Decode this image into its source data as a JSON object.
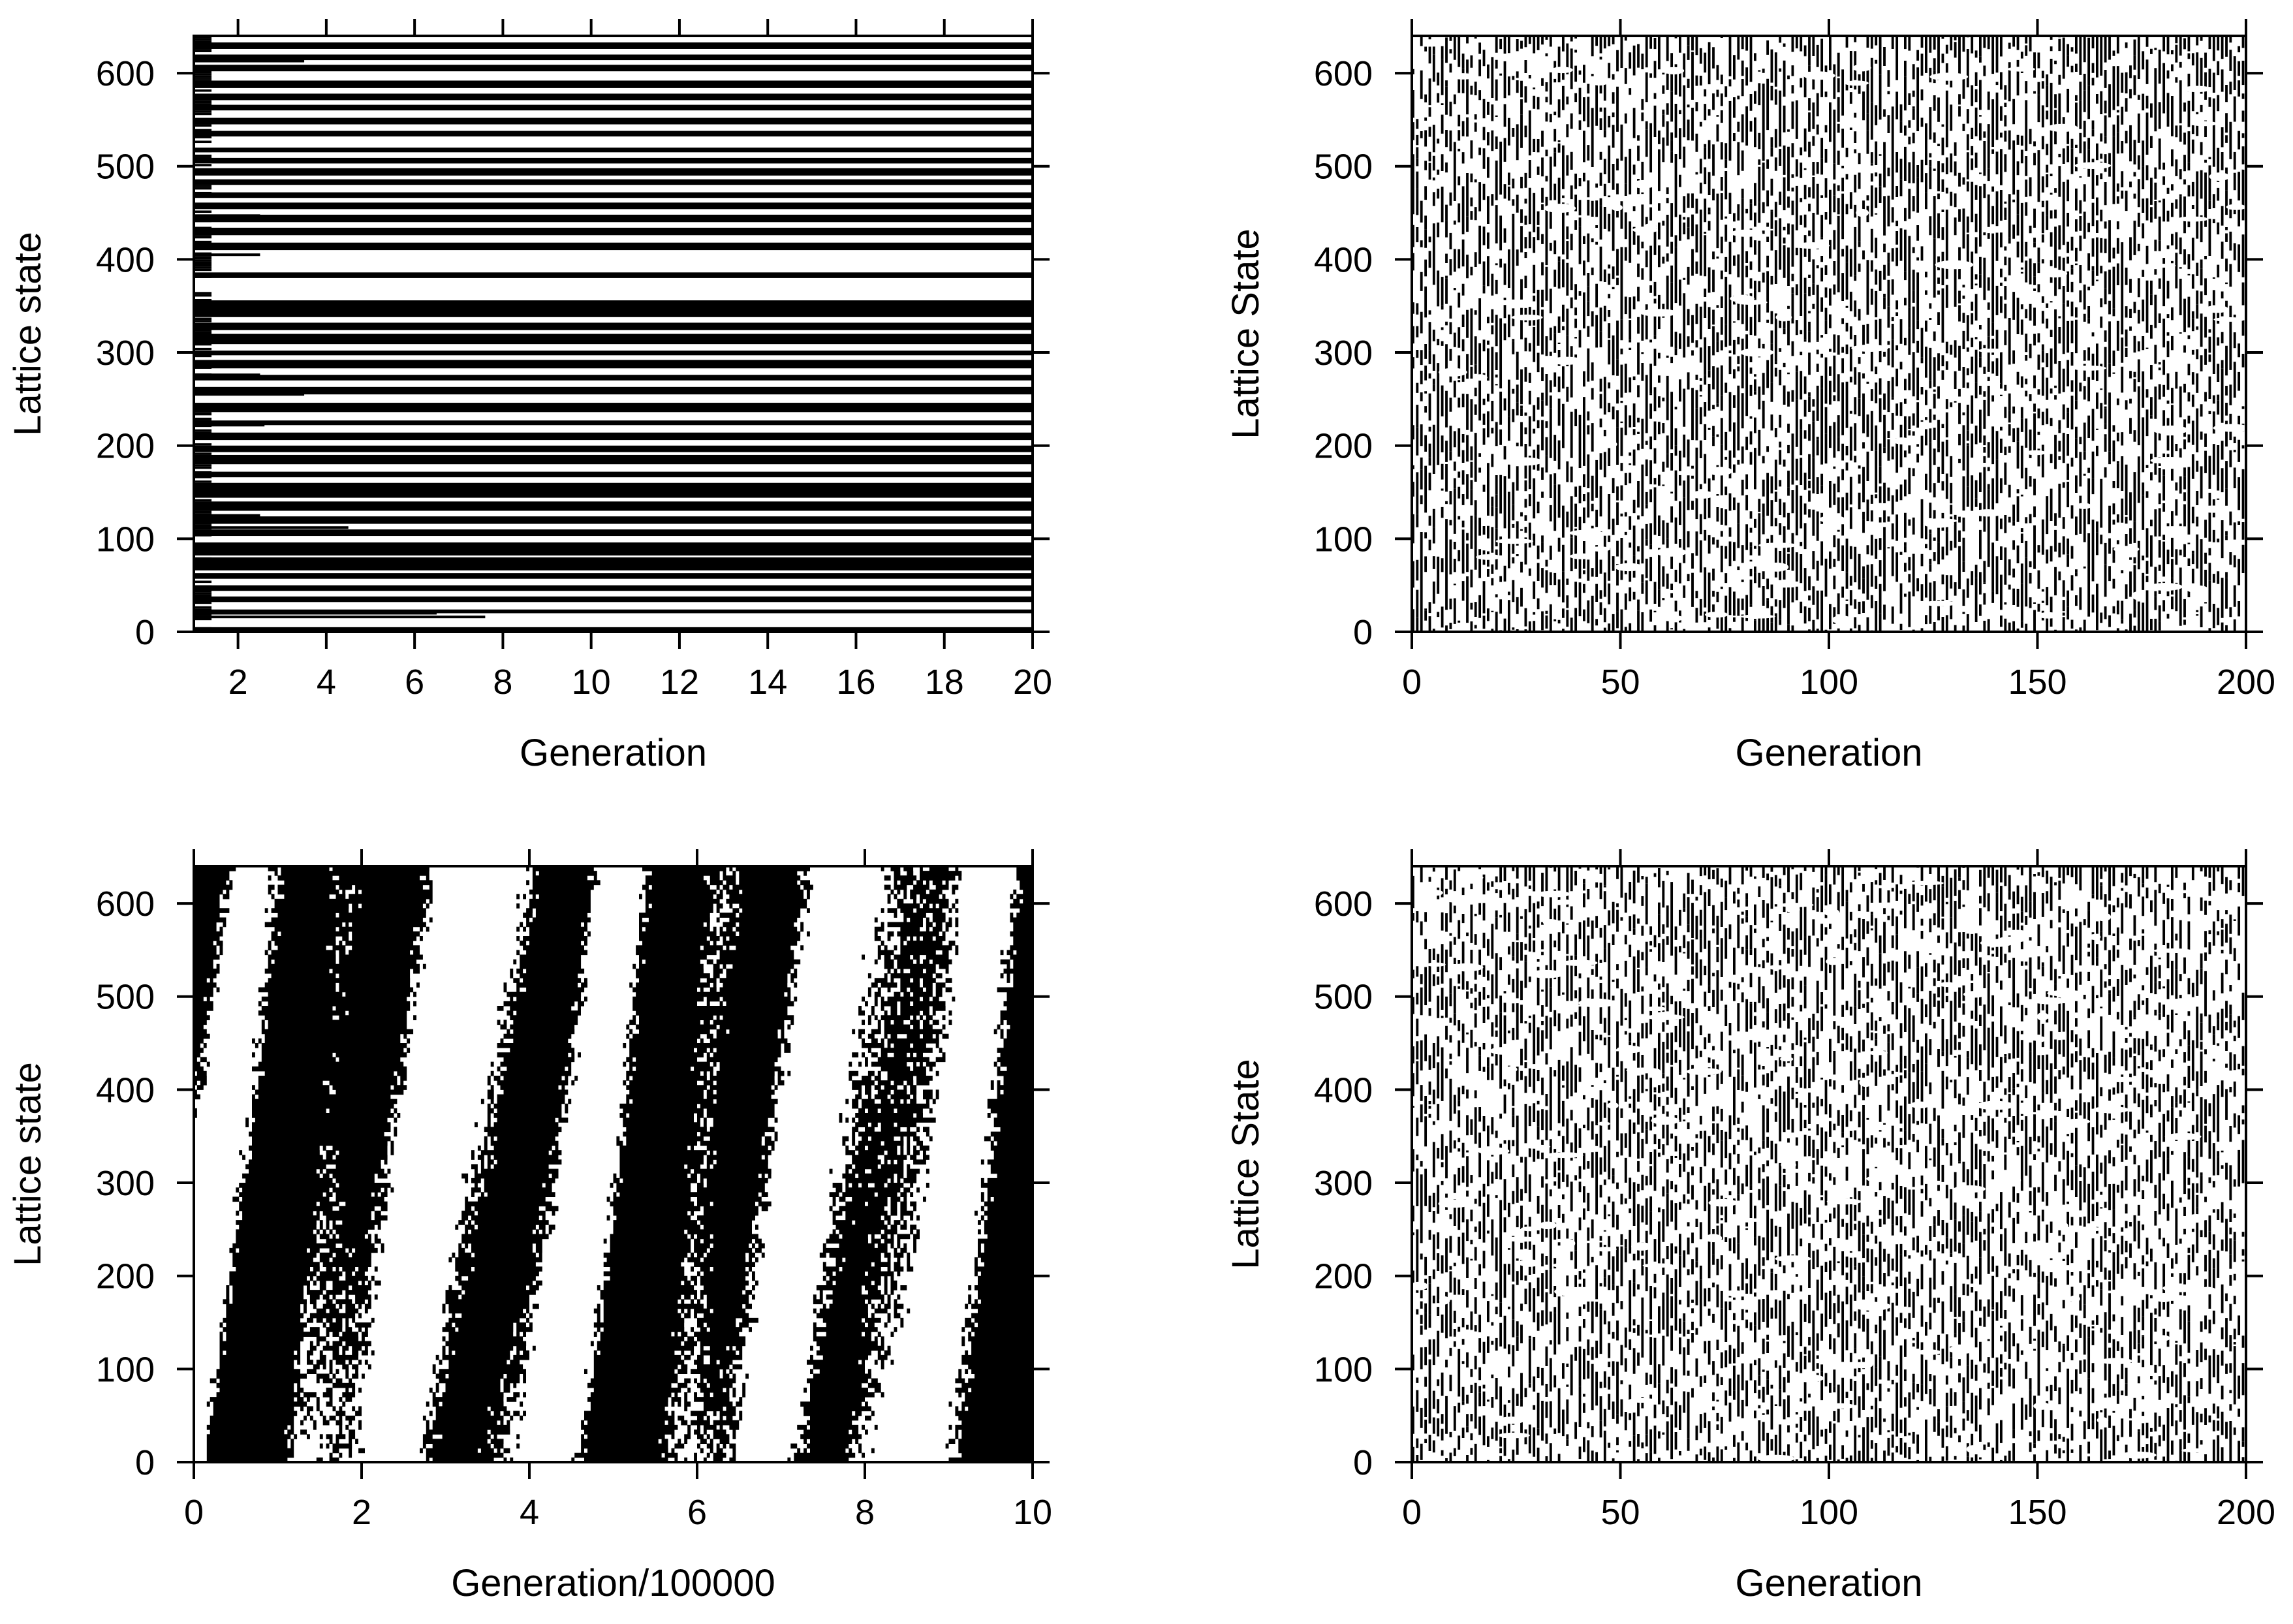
{
  "figure": {
    "colors": {
      "foreground": "#000000",
      "background": "#ffffff"
    }
  },
  "chart_data": [
    {
      "id": "panel-a",
      "type": "heatmap",
      "pattern": "horizontal-stripes",
      "xlabel": "Generation",
      "ylabel": "Lattice state",
      "xlim": [
        1,
        20
      ],
      "ylim": [
        0,
        640
      ],
      "x_ticks": [
        2,
        4,
        6,
        8,
        10,
        12,
        14,
        16,
        18,
        20
      ],
      "x_tick_labels": [
        "2",
        "4",
        "6",
        "8",
        "10",
        "12",
        "14",
        "16",
        "18",
        "20"
      ],
      "y_ticks": [
        0,
        100,
        200,
        300,
        400,
        500,
        600
      ],
      "y_tick_labels": [
        "0",
        "100",
        "200",
        "300",
        "400",
        "500",
        "600"
      ],
      "bands": [
        [
          0,
          5
        ],
        [
          20,
          24
        ],
        [
          32,
          38
        ],
        [
          44,
          50
        ],
        [
          57,
          63
        ],
        [
          66,
          80
        ],
        [
          82,
          96
        ],
        [
          103,
          110
        ],
        [
          116,
          124
        ],
        [
          130,
          140
        ],
        [
          144,
          160
        ],
        [
          166,
          172
        ],
        [
          180,
          190
        ],
        [
          193,
          200
        ],
        [
          206,
          214
        ],
        [
          222,
          227
        ],
        [
          236,
          246
        ],
        [
          255,
          263
        ],
        [
          270,
          276
        ],
        [
          283,
          292
        ],
        [
          297,
          302
        ],
        [
          309,
          320
        ],
        [
          324,
          332
        ],
        [
          338,
          356
        ],
        [
          380,
          386
        ],
        [
          410,
          418
        ],
        [
          426,
          434
        ],
        [
          440,
          448
        ],
        [
          454,
          461
        ],
        [
          466,
          472
        ],
        [
          480,
          486
        ],
        [
          490,
          498
        ],
        [
          503,
          509
        ],
        [
          515,
          520
        ],
        [
          532,
          538
        ],
        [
          545,
          552
        ],
        [
          560,
          566
        ],
        [
          571,
          578
        ],
        [
          584,
          592
        ],
        [
          602,
          609
        ],
        [
          614,
          620
        ],
        [
          626,
          633
        ]
      ],
      "transient_lines": [
        {
          "y": 20,
          "x_end": 6.5
        },
        {
          "y": 16,
          "x_end": 7.6
        },
        {
          "y": 112,
          "x_end": 4.5
        },
        {
          "y": 255,
          "x_end": 3.5
        },
        {
          "y": 222,
          "x_end": 2.6
        },
        {
          "y": 276,
          "x_end": 2.5
        },
        {
          "y": 168,
          "x_end": 2.6
        },
        {
          "y": 405,
          "x_end": 2.5
        },
        {
          "y": 447,
          "x_end": 2.5
        },
        {
          "y": 613,
          "x_end": 3.5
        },
        {
          "y": 315,
          "x_end": 2.6
        },
        {
          "y": 125,
          "x_end": 2.5
        }
      ]
    },
    {
      "id": "panel-b",
      "type": "heatmap",
      "pattern": "fine-speckle",
      "xlabel": "Generation",
      "ylabel": "Lattice State",
      "xlim": [
        0,
        200
      ],
      "ylim": [
        0,
        640
      ],
      "x_ticks": [
        0,
        50,
        100,
        150,
        200
      ],
      "x_tick_labels": [
        "0",
        "50",
        "100",
        "150",
        "200"
      ],
      "y_ticks": [
        0,
        100,
        200,
        300,
        400,
        500,
        600
      ],
      "y_tick_labels": [
        "0",
        "100",
        "200",
        "300",
        "400",
        "500",
        "600"
      ],
      "black_fraction": 0.5
    },
    {
      "id": "panel-c",
      "type": "heatmap",
      "pattern": "coarse-domains",
      "xlabel": "Generation/100000",
      "ylabel": "Lattice state",
      "xlim": [
        0,
        10
      ],
      "ylim": [
        0,
        640
      ],
      "x_ticks": [
        0,
        2,
        4,
        6,
        8,
        10
      ],
      "x_tick_labels": [
        "0",
        "2",
        "4",
        "6",
        "8",
        "10"
      ],
      "y_ticks": [
        0,
        100,
        200,
        300,
        400,
        500,
        600
      ],
      "y_tick_labels": [
        "0",
        "100",
        "200",
        "300",
        "400",
        "500",
        "600"
      ],
      "black_fraction": 0.55
    },
    {
      "id": "panel-d",
      "type": "heatmap",
      "pattern": "fine-speckle",
      "xlabel": "Generation",
      "ylabel": "Lattice State",
      "xlim": [
        0,
        200
      ],
      "ylim": [
        0,
        640
      ],
      "x_ticks": [
        0,
        50,
        100,
        150,
        200
      ],
      "x_tick_labels": [
        "0",
        "50",
        "100",
        "150",
        "200"
      ],
      "y_ticks": [
        0,
        100,
        200,
        300,
        400,
        500,
        600
      ],
      "y_tick_labels": [
        "0",
        "100",
        "200",
        "300",
        "400",
        "500",
        "600"
      ],
      "black_fraction": 0.45
    }
  ]
}
